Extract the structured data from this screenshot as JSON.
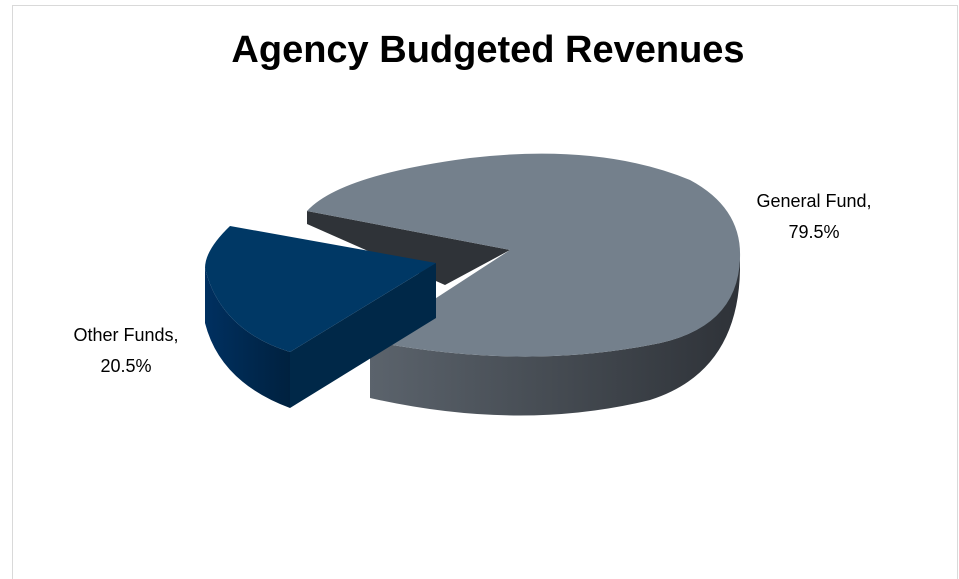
{
  "chart_data": {
    "type": "pie",
    "title": "Agency Budgeted Revenues",
    "three_d": true,
    "exploded_slice": "Other Funds",
    "slices": [
      {
        "name": "General Fund",
        "value": 79.5,
        "label_line1": "General Fund,",
        "label_line2": "79.5%",
        "color": "#74808c",
        "side_color": "#4d5560"
      },
      {
        "name": "Other Funds",
        "value": 20.5,
        "label_line1": "Other Funds,",
        "label_line2": "20.5%",
        "color": "#003865",
        "side_color": "#002848"
      }
    ]
  }
}
